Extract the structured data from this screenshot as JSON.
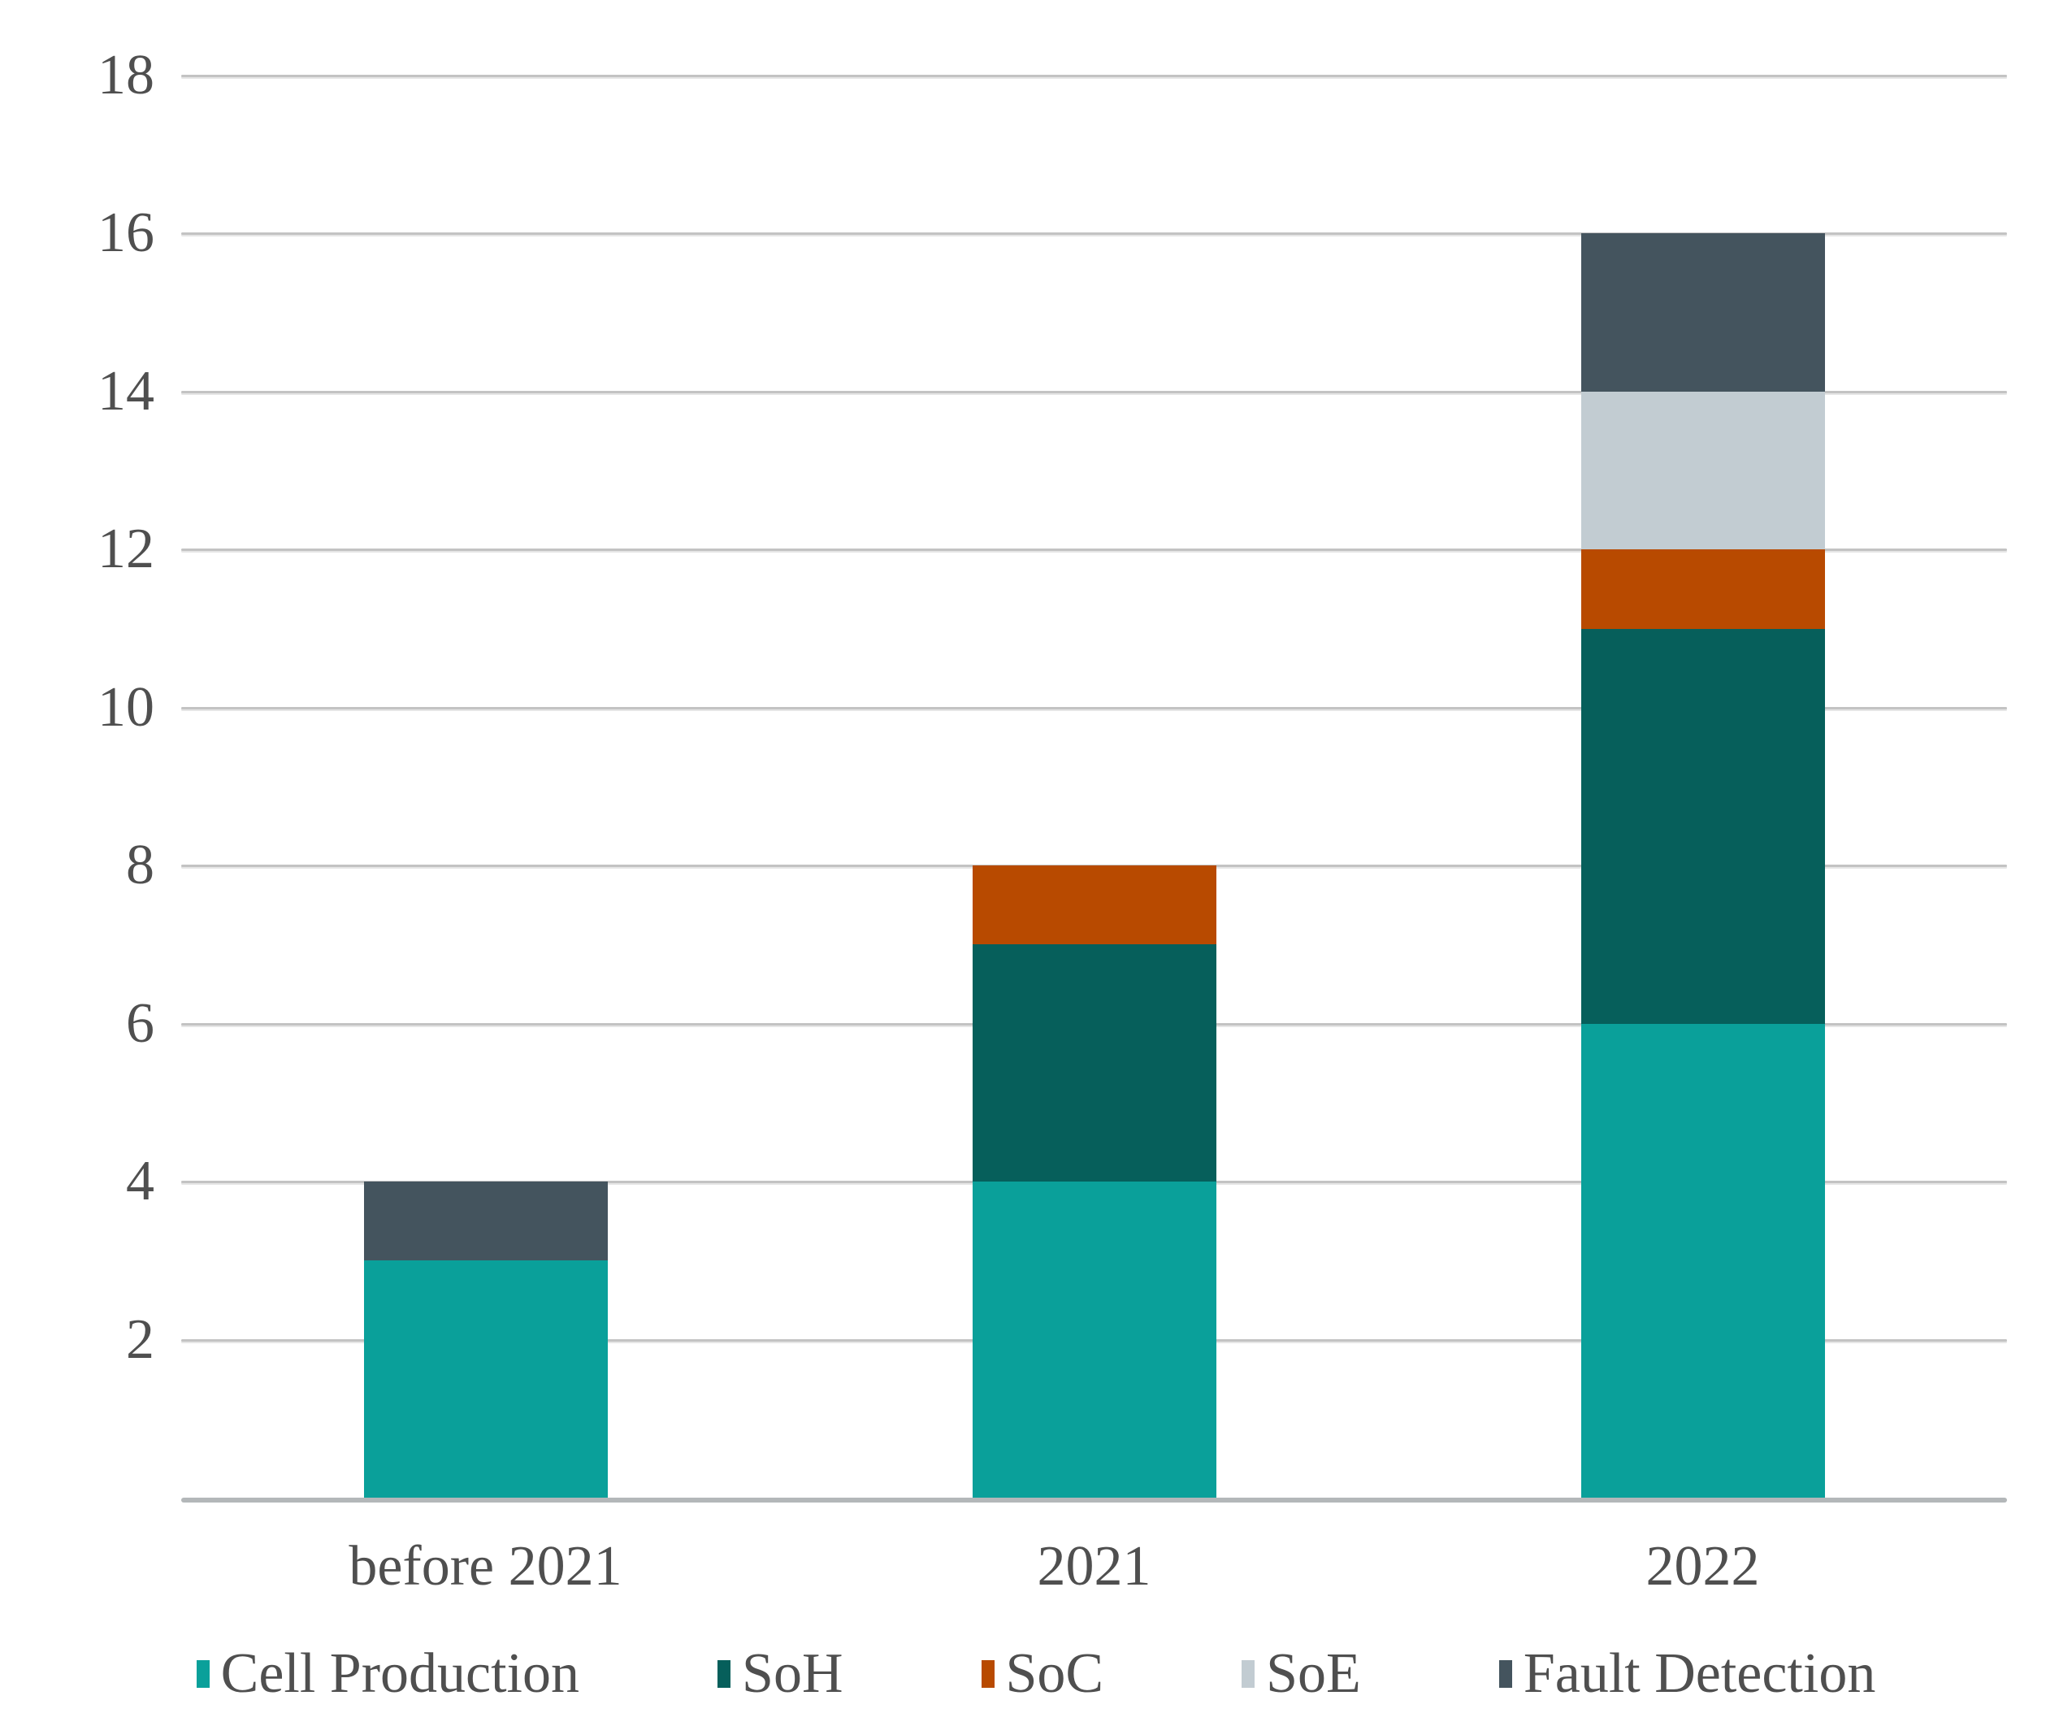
{
  "chart_data": {
    "type": "bar",
    "stacked": true,
    "title": "",
    "xlabel": "",
    "ylabel": "",
    "categories": [
      "before 2021",
      "2021",
      "2022"
    ],
    "series": [
      {
        "name": "Cell Production",
        "color": "#0aa09a",
        "values": [
          3,
          4,
          6
        ]
      },
      {
        "name": "SoH",
        "color": "#065f5b",
        "values": [
          0,
          3,
          5
        ]
      },
      {
        "name": "SoC",
        "color": "#b84a00",
        "values": [
          0,
          1,
          1
        ]
      },
      {
        "name": "SoE",
        "color": "#c2ccd2",
        "values": [
          0,
          0,
          2
        ]
      },
      {
        "name": "Fault Detection",
        "color": "#44545e",
        "values": [
          1,
          0,
          2
        ]
      }
    ],
    "totals": [
      4,
      8,
      16
    ],
    "ylim": [
      0,
      18
    ],
    "yticks": [
      2,
      4,
      6,
      8,
      10,
      12,
      14,
      16,
      18
    ],
    "grid": true,
    "legend_position": "bottom"
  },
  "style_colors": {
    "gridline": "#c3c3c3",
    "axis_line": "#b3b7b9",
    "text": "#4f4f4f",
    "background": "#ffffff"
  }
}
